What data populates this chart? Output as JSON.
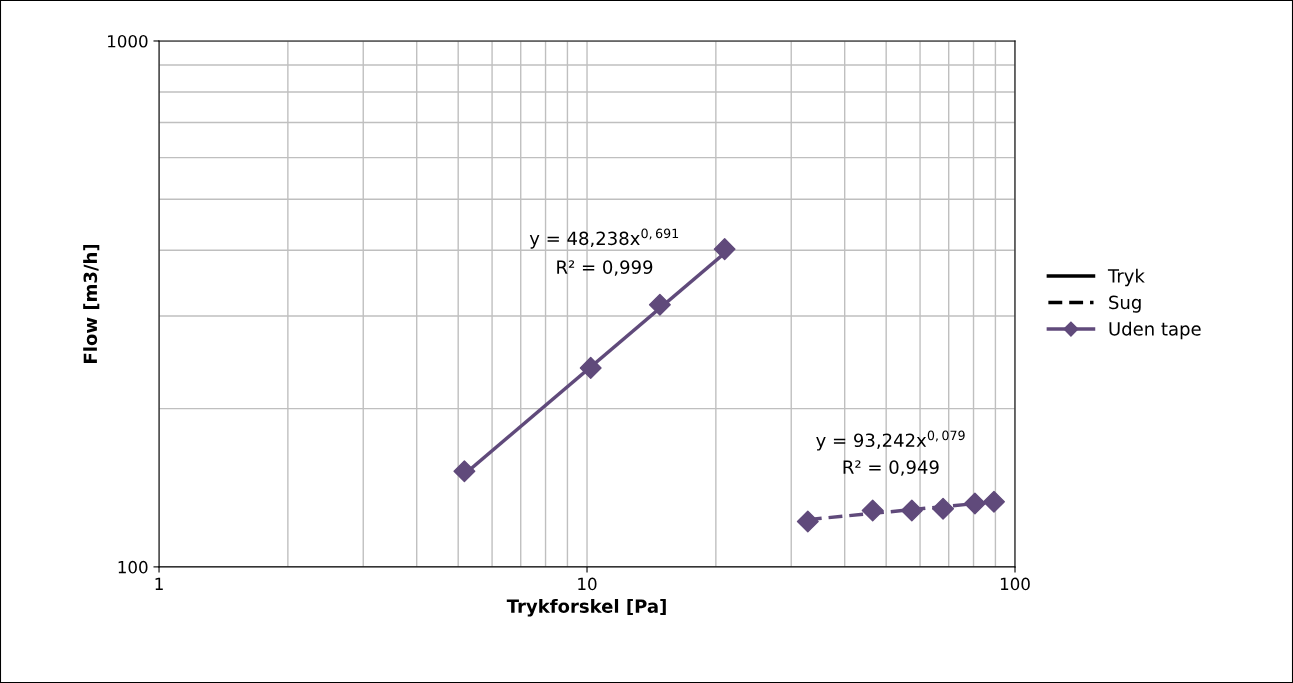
{
  "chart_data": {
    "type": "line",
    "xlabel": "Trykforskel [Pa]",
    "ylabel": "Flow [m3/h]",
    "log": "xy",
    "xlim": [
      1,
      100
    ],
    "xticks": [
      1,
      10,
      100
    ],
    "ylim": [
      100,
      1000
    ],
    "yticks": [
      100,
      1000
    ],
    "grid": true,
    "legend": "right",
    "series": [
      {
        "name": "Tryk",
        "color": "#000000",
        "line_style": "solid",
        "marker": "none"
      },
      {
        "name": "Sug",
        "color": "#000000",
        "line_style": "dashed",
        "marker": "none"
      },
      {
        "name": "Uden tape",
        "type": "scatter",
        "color": "#604a7b",
        "marker": "diamond",
        "x": [
          5.17,
          10.2,
          14.8,
          20.97,
          32.8,
          46.5,
          57.4,
          67.9,
          80.6,
          89.3
        ],
        "values": [
          152,
          239,
          315,
          402,
          122,
          128,
          128,
          129,
          132,
          133
        ]
      },
      {
        "type": "line",
        "color": "#604a7b",
        "line_style": "solid",
        "marker": "none",
        "x": [
          5.17,
          20.97
        ],
        "values": [
          150,
          395
        ]
      },
      {
        "type": "line",
        "color": "#604a7b",
        "line_style": "dashed",
        "marker": "none",
        "x": [
          32.8,
          89.3
        ],
        "values": [
          123,
          133
        ]
      }
    ],
    "annotations": [
      "y = 48,238x$^{0,691}$",
      "R² = 0,999",
      "y = 93,242x$^{0,079}$",
      "R² = 0,949"
    ]
  }
}
